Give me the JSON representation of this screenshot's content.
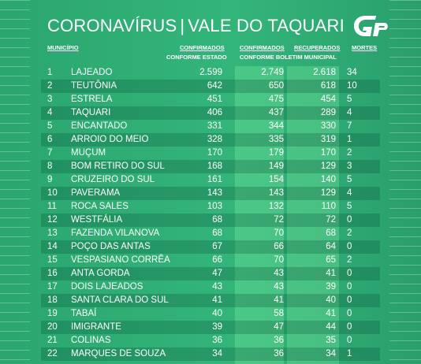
{
  "title": {
    "left": "CORONAVÍRUS",
    "sep": "|",
    "right": "VALE DO TAQUARI"
  },
  "logo": "GP",
  "headers": {
    "municipio": "MUNICÍPIO",
    "confirmados1": "CONFIRMADOS",
    "conforme_estado": "CONFORME ESTADO",
    "confirmados2": "CONFIRMADOS",
    "recuperados": "RECUPERADOS",
    "conforme_boletim": "CONFORME BOLETIM MUNICIPAL",
    "mortes": "MORTES"
  },
  "rows": [
    {
      "n": "1",
      "m": "LAJEADO",
      "e": "2.599",
      "c": "2.749",
      "r": "2.618",
      "d": "34"
    },
    {
      "n": "2",
      "m": "TEUTÔNIA",
      "e": "642",
      "c": "650",
      "r": "618",
      "d": "10"
    },
    {
      "n": "3",
      "m": "ESTRELA",
      "e": "451",
      "c": "475",
      "r": "454",
      "d": "5"
    },
    {
      "n": "4",
      "m": "TAQUARI",
      "e": "406",
      "c": "437",
      "r": "289",
      "d": "4"
    },
    {
      "n": "5",
      "m": "ENCANTADO",
      "e": "331",
      "c": "344",
      "r": "330",
      "d": "7"
    },
    {
      "n": "6",
      "m": "ARROIO DO MEIO",
      "e": "328",
      "c": "335",
      "r": "319",
      "d": "1"
    },
    {
      "n": "7",
      "m": "MUÇUM",
      "e": "170",
      "c": "179",
      "r": "170",
      "d": "2"
    },
    {
      "n": "8",
      "m": "BOM RETIRO DO SUL",
      "e": "168",
      "c": "149",
      "r": "129",
      "d": "3"
    },
    {
      "n": "9",
      "m": "CRUZEIRO DO SUL",
      "e": "161",
      "c": "154",
      "r": "140",
      "d": "5"
    },
    {
      "n": "10",
      "m": "PAVERAMA",
      "e": "143",
      "c": "143",
      "r": "129",
      "d": "4"
    },
    {
      "n": "11",
      "m": "ROCA SALES",
      "e": "103",
      "c": "132",
      "r": "110",
      "d": "5"
    },
    {
      "n": "12",
      "m": "WESTFÁLIA",
      "e": "68",
      "c": "72",
      "r": "72",
      "d": "0"
    },
    {
      "n": "13",
      "m": "FAZENDA VILANOVA",
      "e": "68",
      "c": "70",
      "r": "68",
      "d": "2"
    },
    {
      "n": "14",
      "m": "POÇO DAS ANTAS",
      "e": "67",
      "c": "66",
      "r": "64",
      "d": "0"
    },
    {
      "n": "15",
      "m": "VESPASIANO CORRÊA",
      "e": "66",
      "c": "70",
      "r": "65",
      "d": "2"
    },
    {
      "n": "16",
      "m": "ANTA GORDA",
      "e": "47",
      "c": "43",
      "r": "41",
      "d": "0"
    },
    {
      "n": "17",
      "m": "DOIS LAJEADOS",
      "e": "43",
      "c": "43",
      "r": "39",
      "d": "0"
    },
    {
      "n": "18",
      "m": "SANTA CLARA DO SUL",
      "e": "41",
      "c": "41",
      "r": "40",
      "d": "0"
    },
    {
      "n": "19",
      "m": "TABAÍ",
      "e": "40",
      "c": "58",
      "r": "41",
      "d": "0"
    },
    {
      "n": "20",
      "m": "IMIGRANTE",
      "e": "39",
      "c": "47",
      "r": "44",
      "d": "0"
    },
    {
      "n": "21",
      "m": "COLINAS",
      "e": "36",
      "c": "36",
      "r": "35",
      "d": "0"
    },
    {
      "n": "22",
      "m": "MARQUES DE SOUZA",
      "e": "34",
      "c": "36",
      "r": "34",
      "d": "1"
    }
  ]
}
